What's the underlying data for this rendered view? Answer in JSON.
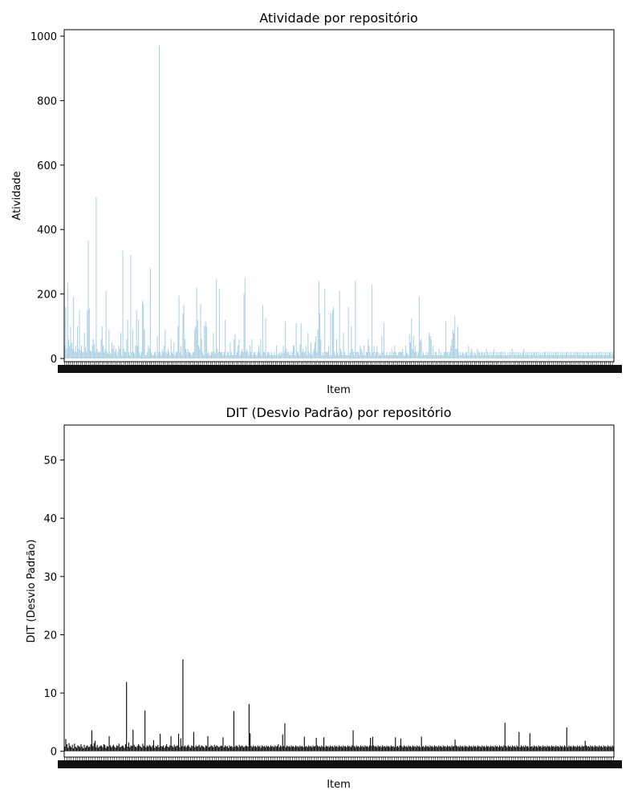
{
  "chart_data": [
    {
      "type": "bar",
      "title": "Atividade por repositório",
      "xlabel": "Item",
      "ylabel": "Atividade",
      "ylim": [
        -10,
        1020
      ],
      "yticks": [
        0,
        200,
        400,
        600,
        800,
        1000
      ],
      "bar_color": "#a6cee3",
      "grid": false,
      "n_items": 520,
      "values": [
        40,
        160,
        30,
        235,
        60,
        40,
        100,
        50,
        30,
        190,
        20,
        40,
        20,
        100,
        30,
        150,
        25,
        40,
        20,
        20,
        80,
        35,
        20,
        150,
        365,
        155,
        25,
        20,
        40,
        60,
        45,
        20,
        500,
        30,
        20,
        20,
        20,
        60,
        100,
        40,
        20,
        30,
        210,
        20,
        15,
        90,
        20,
        15,
        50,
        30,
        40,
        20,
        30,
        10,
        20,
        40,
        30,
        80,
        10,
        335,
        30,
        20,
        20,
        60,
        120,
        20,
        10,
        320,
        20,
        90,
        20,
        15,
        40,
        150,
        40,
        120,
        20,
        10,
        20,
        180,
        170,
        90,
        10,
        10,
        20,
        40,
        30,
        280,
        20,
        10,
        10,
        20,
        20,
        10,
        70,
        20,
        970,
        20,
        10,
        30,
        20,
        40,
        90,
        20,
        15,
        30,
        20,
        10,
        60,
        20,
        15,
        50,
        10,
        20,
        20,
        100,
        195,
        20,
        40,
        10,
        140,
        165,
        60,
        30,
        20,
        30,
        20,
        20,
        15,
        10,
        20,
        20,
        90,
        100,
        220,
        120,
        40,
        30,
        170,
        60,
        20,
        10,
        100,
        115,
        100,
        15,
        20,
        10,
        10,
        20,
        20,
        80,
        20,
        15,
        245,
        30,
        20,
        215,
        20,
        20,
        20,
        10,
        20,
        120,
        10,
        20,
        20,
        10,
        50,
        20,
        10,
        10,
        60,
        75,
        10,
        20,
        40,
        60,
        10,
        20,
        30,
        20,
        200,
        250,
        20,
        30,
        20,
        10,
        40,
        20,
        60,
        10,
        20,
        20,
        10,
        10,
        20,
        40,
        20,
        60,
        10,
        165,
        20,
        20,
        125,
        10,
        20,
        20,
        15,
        10,
        20,
        10,
        10,
        20,
        10,
        40,
        10,
        15,
        20,
        10,
        20,
        15,
        40,
        20,
        115,
        30,
        20,
        20,
        10,
        20,
        10,
        20,
        40,
        40,
        10,
        110,
        20,
        20,
        10,
        45,
        110,
        20,
        30,
        20,
        20,
        40,
        10,
        80,
        20,
        15,
        50,
        10,
        20,
        30,
        50,
        70,
        20,
        90,
        240,
        140,
        60,
        10,
        20,
        10,
        215,
        20,
        20,
        20,
        40,
        10,
        140,
        10,
        150,
        160,
        20,
        10,
        60,
        20,
        10,
        210,
        30,
        20,
        10,
        80,
        20,
        10,
        10,
        10,
        160,
        10,
        20,
        100,
        30,
        20,
        10,
        240,
        20,
        20,
        20,
        10,
        40,
        30,
        20,
        10,
        40,
        10,
        20,
        20,
        60,
        40,
        20,
        10,
        230,
        20,
        40,
        10,
        20,
        40,
        20,
        10,
        15,
        10,
        70,
        20,
        110,
        10,
        10,
        20,
        10,
        10,
        20,
        10,
        30,
        10,
        20,
        40,
        20,
        10,
        10,
        20,
        20,
        20,
        20,
        30,
        10,
        10,
        40,
        20,
        15,
        10,
        75,
        50,
        125,
        30,
        70,
        20,
        40,
        20,
        10,
        20,
        190,
        55,
        60,
        10,
        20,
        10,
        10,
        20,
        10,
        20,
        80,
        70,
        60,
        10,
        40,
        10,
        20,
        20,
        10,
        10,
        30,
        10,
        20,
        10,
        10,
        20,
        20,
        115,
        20,
        20,
        10,
        20,
        40,
        60,
        90,
        80,
        130,
        30,
        30,
        100,
        20,
        10,
        20,
        10,
        20,
        15,
        10,
        20,
        20,
        10,
        40,
        10,
        20,
        30,
        20,
        10,
        20,
        15,
        10,
        30,
        20,
        20,
        10,
        20,
        20,
        10,
        20,
        10,
        30,
        20,
        10,
        20,
        10,
        20,
        10,
        20,
        30,
        10,
        20,
        10,
        20,
        10,
        20,
        20,
        10,
        20,
        10,
        20,
        10,
        10,
        20,
        10,
        20,
        10,
        30,
        20,
        10,
        20,
        10,
        20,
        10,
        20,
        10,
        20,
        10,
        20,
        30,
        10,
        20,
        10,
        20,
        10,
        20,
        10,
        20,
        10,
        20,
        20,
        10,
        20,
        10,
        20,
        10,
        20,
        10,
        20,
        10,
        20,
        20,
        10,
        20,
        10,
        20,
        10,
        20,
        10,
        20,
        10,
        20,
        20,
        10,
        20,
        10,
        20,
        10,
        20,
        10,
        20,
        10,
        20,
        20,
        10,
        20,
        10,
        20,
        10,
        20,
        10,
        20,
        10,
        20,
        20,
        10,
        20,
        10,
        20,
        10,
        20,
        10,
        20,
        10,
        20,
        20,
        10,
        20,
        10,
        20,
        10,
        20,
        10,
        20,
        10,
        20,
        20,
        10,
        20,
        10,
        20,
        10,
        20,
        10,
        20,
        10,
        20,
        20,
        10,
        20,
        10
      ]
    },
    {
      "type": "bar",
      "title": "DIT (Desvio Padrão) por repositório",
      "xlabel": "Item",
      "ylabel": "DIT (Desvio Padrão)",
      "ylim": [
        -1,
        56
      ],
      "yticks": [
        0,
        10,
        20,
        30,
        40,
        50
      ],
      "bar_color": "#000000",
      "grid": false,
      "n_items": 520,
      "values": [
        0.8,
        2.1,
        1.2,
        0.6,
        1.4,
        0.9,
        0.7,
        1.1,
        0.5,
        1.3,
        0.8,
        0.6,
        1.0,
        0.9,
        0.7,
        1.2,
        0.8,
        0.5,
        1.1,
        0.6,
        0.9,
        1.0,
        0.7,
        0.8,
        1.2,
        3.6,
        0.9,
        1.4,
        1.8,
        0.7,
        1.1,
        0.6,
        0.8,
        1.0,
        0.9,
        0.7,
        1.2,
        1.1,
        0.6,
        0.9,
        0.8,
        2.6,
        1.0,
        0.7,
        0.9,
        1.1,
        0.8,
        0.6,
        1.0,
        0.9,
        1.3,
        0.7,
        0.8,
        1.0,
        0.9,
        0.6,
        1.2,
        11.9,
        0.8,
        1.5,
        0.7,
        1.0,
        0.9,
        3.7,
        1.1,
        0.8,
        0.7,
        0.9,
        1.2,
        1.0,
        0.8,
        0.6,
        1.3,
        0.9,
        7.0,
        0.7,
        1.0,
        0.8,
        1.1,
        0.9,
        0.7,
        1.0,
        1.9,
        0.6,
        0.9,
        0.8,
        1.1,
        0.7,
        3.0,
        0.9,
        0.8,
        1.0,
        0.6,
        0.9,
        1.2,
        0.8,
        0.7,
        1.0,
        2.6,
        0.9,
        0.7,
        1.1,
        0.8,
        0.9,
        1.0,
        3.0,
        0.7,
        2.2,
        0.9,
        15.8,
        0.8,
        1.0,
        0.7,
        0.9,
        1.1,
        0.8,
        0.6,
        1.0,
        0.9,
        3.3,
        0.7,
        1.0,
        0.8,
        0.9,
        1.1,
        0.7,
        1.0,
        0.9,
        0.8,
        0.6,
        1.0,
        0.9,
        2.6,
        0.7,
        0.8,
        1.0,
        0.9,
        0.7,
        1.1,
        0.8,
        1.0,
        0.9,
        0.7,
        0.8,
        1.0,
        0.9,
        2.4,
        0.7,
        1.0,
        0.8,
        0.9,
        0.6,
        1.0,
        0.8,
        0.9,
        0.7,
        6.9,
        0.8,
        1.0,
        0.9,
        0.7,
        1.1,
        0.8,
        1.0,
        0.9,
        0.7,
        0.8,
        1.0,
        0.9,
        0.8,
        8.1,
        3.1,
        0.9,
        0.7,
        1.0,
        0.8,
        0.9,
        0.7,
        1.0,
        0.8,
        0.9,
        0.6,
        1.0,
        0.8,
        0.9,
        0.7,
        1.0,
        0.8,
        0.9,
        0.7,
        1.0,
        0.8,
        0.9,
        0.7,
        1.0,
        0.8,
        0.9,
        1.2,
        0.7,
        1.0,
        0.8,
        2.9,
        0.9,
        4.8,
        0.7,
        1.0,
        0.8,
        0.9,
        0.7,
        1.0,
        0.8,
        0.9,
        0.7,
        1.0,
        0.8,
        0.9,
        0.7,
        1.0,
        0.8,
        0.9,
        0.7,
        2.5,
        0.8,
        0.9,
        0.7,
        1.0,
        0.8,
        0.9,
        0.7,
        1.0,
        0.8,
        0.9,
        2.3,
        1.0,
        0.8,
        0.9,
        0.7,
        1.0,
        0.8,
        2.4,
        0.7,
        1.0,
        0.8,
        0.9,
        0.7,
        1.0,
        0.8,
        0.9,
        0.7,
        1.0,
        0.8,
        0.9,
        0.7,
        1.0,
        0.8,
        0.9,
        0.7,
        1.0,
        0.8,
        0.9,
        0.7,
        1.0,
        0.8,
        0.9,
        0.7,
        1.0,
        3.6,
        0.9,
        0.7,
        1.0,
        0.8,
        0.9,
        0.7,
        1.0,
        0.8,
        0.9,
        0.7,
        1.0,
        0.8,
        0.9,
        0.7,
        1.0,
        2.3,
        0.9,
        2.5,
        1.0,
        0.8,
        0.9,
        0.7,
        1.0,
        0.8,
        0.9,
        0.7,
        1.0,
        0.8,
        0.9,
        0.7,
        1.0,
        0.8,
        0.9,
        0.7,
        1.0,
        0.8,
        0.9,
        0.7,
        2.4,
        0.8,
        0.9,
        0.7,
        1.0,
        2.2,
        0.9,
        0.7,
        1.0,
        0.8,
        0.9,
        0.7,
        1.0,
        0.8,
        0.9,
        0.7,
        1.0,
        0.8,
        0.9,
        0.7,
        1.0,
        0.8,
        0.9,
        0.7,
        2.5,
        0.8,
        0.9,
        0.7,
        1.0,
        0.8,
        0.9,
        0.7,
        1.0,
        0.8,
        0.9,
        0.7,
        1.0,
        0.8,
        0.9,
        0.7,
        1.0,
        0.8,
        0.9,
        0.7,
        1.0,
        0.8,
        0.9,
        0.7,
        1.0,
        0.8,
        0.9,
        0.7,
        1.0,
        0.8,
        0.9,
        2.0,
        1.0,
        0.8,
        0.9,
        0.7,
        1.0,
        0.8,
        0.9,
        0.7,
        1.0,
        0.8,
        0.9,
        0.7,
        1.0,
        0.8,
        0.9,
        0.7,
        1.0,
        0.8,
        0.9,
        0.7,
        1.0,
        0.8,
        0.9,
        0.7,
        1.0,
        0.8,
        0.9,
        0.7,
        1.0,
        0.8,
        0.9,
        0.7,
        1.0,
        0.8,
        0.9,
        0.7,
        1.0,
        0.8,
        0.9,
        0.7,
        1.0,
        0.8,
        0.9,
        0.7,
        1.0,
        4.9,
        0.9,
        0.7,
        1.0,
        0.8,
        0.9,
        0.7,
        1.0,
        0.8,
        0.9,
        0.7,
        1.0,
        0.8,
        3.3,
        0.7,
        1.0,
        0.8,
        0.9,
        0.7,
        1.0,
        0.8,
        0.9,
        0.7,
        3.1,
        0.8,
        0.9,
        0.7,
        1.0,
        0.8,
        0.9,
        0.7,
        1.0,
        0.8,
        0.9,
        0.7,
        1.0,
        0.8,
        0.9,
        0.7,
        1.0,
        0.8,
        0.9,
        0.7,
        1.0,
        0.8,
        0.9,
        0.7,
        1.0,
        0.8,
        0.9,
        0.7,
        1.0,
        0.8,
        0.9,
        0.7,
        1.0,
        0.8,
        4.1,
        0.7,
        1.0,
        0.8,
        0.9,
        0.7,
        1.0,
        0.8,
        0.9,
        0.7,
        1.0,
        0.8,
        0.9,
        0.7,
        1.0,
        0.8,
        0.9,
        1.8,
        1.0,
        0.8,
        0.9,
        0.7,
        1.0,
        0.8,
        0.9,
        0.7,
        1.0,
        0.8,
        0.9,
        0.7,
        1.0,
        0.8,
        0.9,
        0.7,
        1.0,
        0.8,
        0.9,
        0.7,
        1.0,
        0.8,
        0.9,
        0.7,
        1.0,
        0.8
      ]
    }
  ]
}
